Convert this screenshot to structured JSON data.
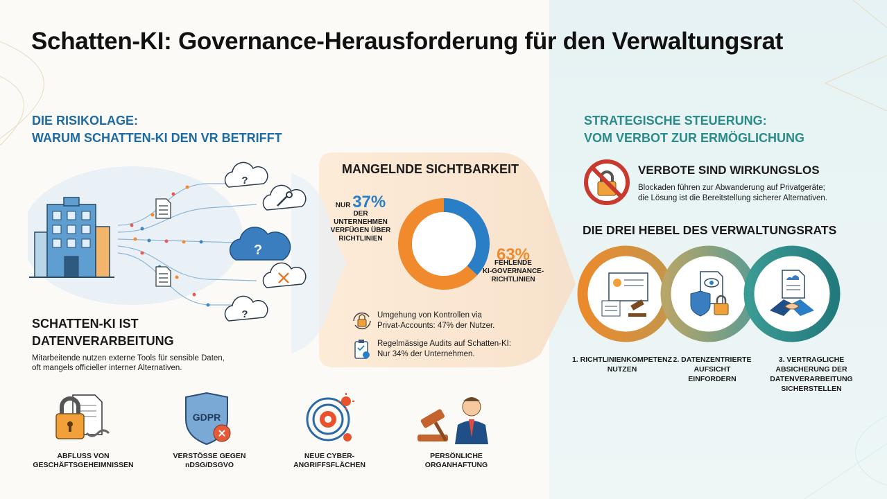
{
  "title": "Schatten-KI: Governance-Herausforderung für den Verwaltungsrat",
  "colors": {
    "blue": "#2a7ec6",
    "orange": "#f08a2c",
    "teal": "#2b8b88",
    "dark": "#1a1a1a"
  },
  "left_section": {
    "title_line1": "DIE RISIKOLAGE:",
    "title_line2": "WARUM SCHATTEN-KI DEN VR BETRIFFT"
  },
  "visibility": {
    "title": "MANGELNDE SICHTBARKEIT",
    "left_prefix": "NUR",
    "left_value": "37%",
    "left_line1": "DER UNTERNEHMEN",
    "left_line2": "VERFÜGEN ÜBER",
    "left_line3": "RICHTLINIEN",
    "right_value": "63%",
    "right_line1": "FEHLENDE",
    "right_line2": "KI-GOVERNANCE-",
    "right_line3": "RICHTLINIEN",
    "stat1_line1": "Umgehung von Kontrollen via",
    "stat1_line2": "Privat-Accounts: 47% der Nutzer.",
    "stat2_line1": "Regelmässige Audits auf Schatten-KI:",
    "stat2_line2": "Nur 34% der Unternehmen."
  },
  "chart_data": {
    "type": "pie",
    "categories": [
      "Unternehmen mit Richtlinien",
      "Fehlende KI-Governance-Richtlinien"
    ],
    "values": [
      37,
      63
    ],
    "colors": [
      "#2a7ec6",
      "#f08a2c"
    ]
  },
  "data_processing": {
    "title_line1": "SCHATTEN-KI IST",
    "title_line2": "DATENVERARBEITUNG",
    "text_line1": "Mitarbeitende nutzen externe Tools für sensible Daten,",
    "text_line2": "oft mangels officieller interner Alternativen."
  },
  "risks": [
    {
      "line1": "ABFLUSS VON",
      "line2": "GESCHÄFTSGEHEIMNISSEN",
      "icon": "lock-document-icon"
    },
    {
      "line1": "VERSTÖSSE GEGEN",
      "line2": "nDSG/DSGVO",
      "icon": "gdpr-shield-icon",
      "badge": "GDPR"
    },
    {
      "line1": "NEUE CYBER-",
      "line2": "ANGRIFFSFLÄCHEN",
      "icon": "target-virus-icon"
    },
    {
      "line1": "PERSÖNLICHE",
      "line2": "ORGANHAFTUNG",
      "icon": "gavel-person-icon"
    }
  ],
  "right_section": {
    "title_line1": "STRATEGISCHE STEUERUNG:",
    "title_line2": "VOM VERBOT ZUR ERMÖGLICHUNG",
    "verbote_title": "VERBOTE SIND WIRKUNGSLOS",
    "verbote_line1": "Blockaden führen zur Abwanderung auf Privatgeräte;",
    "verbote_line2": "die Lösung ist die Bereitstellung sicherer Alternativen.",
    "hebel_title": "DIE DREI HEBEL DES VERWALTUNGSRATS"
  },
  "levers": [
    {
      "line1": "1. RICHTLINIENKOMPETENZ",
      "line2": "NUTZEN",
      "line3": "",
      "line4": ""
    },
    {
      "line1": "2. DATENZENTRIERTE",
      "line2": "AUFSICHT",
      "line3": "EINFORDERN",
      "line4": ""
    },
    {
      "line1": "3. VERTRAGLICHE",
      "line2": "ABSICHERUNG DER",
      "line3": "DATENVERARBEITUNG",
      "line4": "SICHERSTELLEN"
    }
  ]
}
